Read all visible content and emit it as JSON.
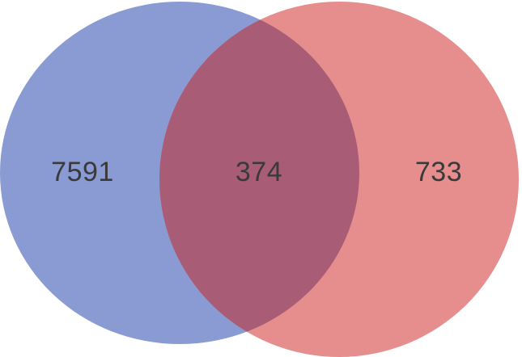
{
  "diagram": {
    "type": "venn",
    "sets": [
      {
        "id": "left",
        "color": "#8a9ad2",
        "only_count": "7591"
      },
      {
        "id": "right",
        "color": "#e68d8d",
        "only_count": "733"
      }
    ],
    "intersection": {
      "color": "#a85c75",
      "count": "374"
    }
  }
}
